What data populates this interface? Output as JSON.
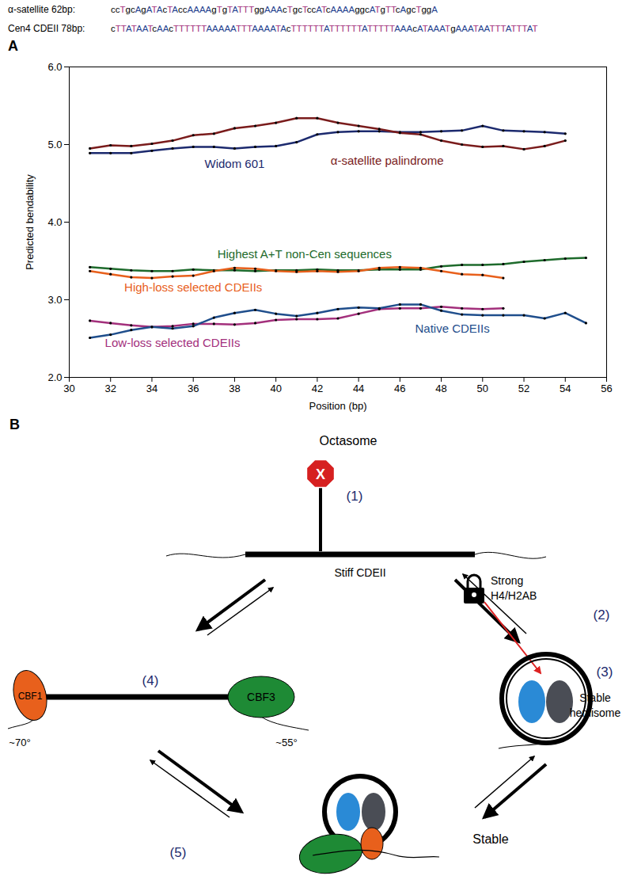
{
  "chart_data": {
    "type": "line",
    "panel_label": "A",
    "xlabel": "Position (bp)",
    "ylabel": "Predicted bendability",
    "xlim": [
      30,
      56
    ],
    "xticks": [
      30,
      32,
      34,
      36,
      38,
      40,
      42,
      44,
      46,
      48,
      50,
      52,
      54,
      56
    ],
    "ylim": [
      2,
      6
    ],
    "yticks": [
      2,
      3,
      4,
      5,
      6
    ],
    "grid": false,
    "x": [
      31,
      32,
      33,
      34,
      35,
      36,
      37,
      38,
      39,
      40,
      41,
      42,
      43,
      44,
      45,
      46,
      47,
      48,
      49,
      50,
      51,
      52,
      53,
      54,
      55
    ],
    "series": [
      {
        "name": "Widom 601",
        "color": "#1c2a6e",
        "marker": "circle",
        "values": [
          4.89,
          4.89,
          4.89,
          4.92,
          4.95,
          4.97,
          4.97,
          4.95,
          4.97,
          4.98,
          5.03,
          5.13,
          5.16,
          5.17,
          5.17,
          5.16,
          5.16,
          5.17,
          5.18,
          5.24,
          5.18,
          5.17,
          5.16,
          5.14,
          null
        ]
      },
      {
        "name": "α-satellite palindrome",
        "color": "#7a1c1c",
        "marker": "circle",
        "values": [
          4.95,
          4.99,
          4.98,
          5.01,
          5.05,
          5.12,
          5.14,
          5.21,
          5.24,
          5.28,
          5.34,
          5.34,
          5.28,
          5.24,
          5.2,
          5.15,
          5.13,
          5.05,
          5.0,
          4.97,
          4.98,
          4.94,
          4.98,
          5.05,
          null
        ]
      },
      {
        "name": "Highest A+T non-Cen sequences",
        "color": "#1e6b2c",
        "marker": "circle",
        "values": [
          3.42,
          3.4,
          3.38,
          3.37,
          3.37,
          3.39,
          3.38,
          3.38,
          3.37,
          3.38,
          3.38,
          3.39,
          3.38,
          3.38,
          3.39,
          3.39,
          3.39,
          3.43,
          3.45,
          3.45,
          3.46,
          3.49,
          3.51,
          3.53,
          3.54
        ]
      },
      {
        "name": "High-loss selected CDEIIs",
        "color": "#e8601c",
        "marker": "circle",
        "values": [
          3.37,
          3.33,
          3.29,
          3.28,
          3.3,
          3.31,
          3.37,
          3.41,
          3.4,
          3.37,
          3.36,
          3.37,
          3.36,
          3.37,
          3.41,
          3.42,
          3.41,
          3.37,
          3.33,
          3.32,
          3.28,
          null,
          null,
          null,
          null
        ]
      },
      {
        "name": "Low-loss selected CDEIIs",
        "color": "#a3307c",
        "marker": "circle",
        "values": [
          2.73,
          2.7,
          2.67,
          2.65,
          2.66,
          2.69,
          2.69,
          2.68,
          2.7,
          2.74,
          2.75,
          2.75,
          2.76,
          2.82,
          2.88,
          2.89,
          2.89,
          2.91,
          2.89,
          2.88,
          2.89,
          null,
          null,
          null,
          null
        ]
      },
      {
        "name": "Native CDEIIs",
        "color": "#1f4e8c",
        "marker": "circle",
        "values": [
          2.51,
          2.55,
          2.61,
          2.65,
          2.63,
          2.66,
          2.77,
          2.83,
          2.87,
          2.82,
          2.79,
          2.83,
          2.88,
          2.9,
          2.89,
          2.94,
          2.94,
          2.86,
          2.81,
          2.8,
          2.8,
          2.8,
          2.76,
          2.83,
          2.7
        ]
      }
    ]
  },
  "sequences": [
    {
      "label": "α-satellite 62bp:",
      "sequence": "ccTgcAgATAcTAccAAAAgTgTATTTggAAAcTgcTccATcAAAAggcATgTTcAgcTggA"
    },
    {
      "label": "Cen4 CDEII 78bp:",
      "sequence": "cTTATAATcAAcTTTTTTAAAAATTTAAAATAcTTTTTTATTTTTTATTTTTAAAcATAAATgAAATAATTTATTTAT"
    }
  ],
  "panel_b": {
    "label": "B",
    "octasome": "Octasome",
    "stop": "X",
    "stiff_cdeii": "Stiff CDEII",
    "lock_text": [
      "Strong",
      "H4/H2AB"
    ],
    "hemisome": [
      "Stable",
      "hemisome"
    ],
    "cbf1": "CBF1",
    "cbf3": "CBF3",
    "angle_cbf1": "~70°",
    "angle_cbf3": "~55°",
    "stable": "Stable",
    "steps": [
      "(1)",
      "(2)",
      "(3)",
      "(4)",
      "(5)"
    ]
  }
}
